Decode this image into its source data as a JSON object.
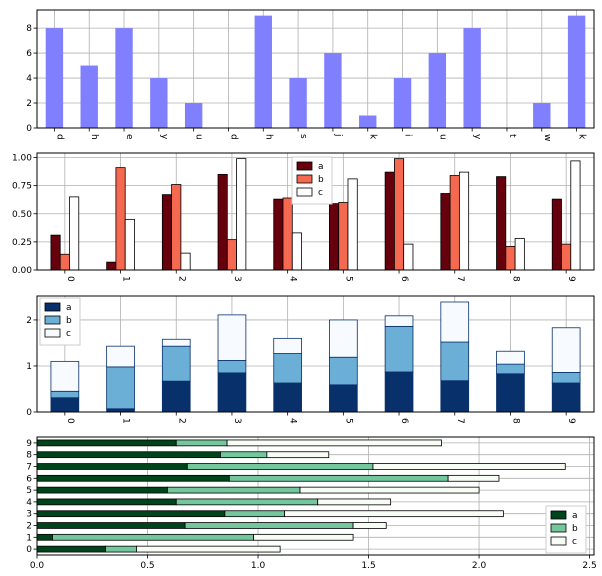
{
  "chart_data": [
    {
      "type": "bar",
      "orientation": "vertical",
      "categories": [
        "d",
        "h",
        "e",
        "y",
        "u",
        "d",
        "h",
        "s",
        "j",
        "k",
        "i",
        "u",
        "y",
        "t",
        "w",
        "k"
      ],
      "series": [
        {
          "values": [
            8,
            5,
            8,
            4,
            2,
            0,
            9,
            4,
            6,
            1,
            4,
            6,
            8,
            0,
            2,
            9
          ],
          "color": "#8080ff"
        }
      ],
      "ylim": [
        0,
        9.45
      ],
      "yticks": [
        0,
        2,
        4,
        6,
        8
      ],
      "ytick_labels": [
        "0",
        "2",
        "4",
        "6",
        "8"
      ],
      "grid": true
    },
    {
      "type": "bar",
      "orientation": "vertical",
      "grouped": true,
      "categories": [
        "0",
        "1",
        "2",
        "3",
        "4",
        "5",
        "6",
        "7",
        "8",
        "9"
      ],
      "series": [
        {
          "name": "a",
          "values": [
            0.31,
            0.07,
            0.67,
            0.85,
            0.63,
            0.59,
            0.87,
            0.68,
            0.83,
            0.63
          ],
          "color": "#67000d"
        },
        {
          "name": "b",
          "values": [
            0.14,
            0.91,
            0.76,
            0.27,
            0.64,
            0.6,
            0.99,
            0.84,
            0.21,
            0.23
          ],
          "color": "#f4694f"
        },
        {
          "name": "c",
          "values": [
            0.65,
            0.45,
            0.15,
            0.99,
            0.33,
            0.81,
            0.23,
            0.87,
            0.28,
            0.97
          ],
          "color": "#ffffff"
        }
      ],
      "ylim": [
        0,
        1.04
      ],
      "yticks": [
        0,
        0.25,
        0.5,
        0.75,
        1.0
      ],
      "ytick_labels": [
        "0.00",
        "0.25",
        "0.50",
        "0.75",
        "1.00"
      ],
      "legend": "top-center",
      "grid": true
    },
    {
      "type": "bar",
      "orientation": "vertical",
      "stacked": true,
      "categories": [
        "0",
        "1",
        "2",
        "3",
        "4",
        "5",
        "6",
        "7",
        "8",
        "9"
      ],
      "series": [
        {
          "name": "a",
          "values": [
            0.31,
            0.07,
            0.67,
            0.85,
            0.63,
            0.59,
            0.87,
            0.68,
            0.83,
            0.63
          ],
          "color": "#08306b"
        },
        {
          "name": "b",
          "values": [
            0.14,
            0.91,
            0.76,
            0.27,
            0.64,
            0.6,
            0.99,
            0.84,
            0.21,
            0.23
          ],
          "color": "#6baed6"
        },
        {
          "name": "c",
          "values": [
            0.65,
            0.45,
            0.15,
            0.99,
            0.33,
            0.81,
            0.23,
            0.87,
            0.28,
            0.97
          ],
          "color": "#f7fbff"
        }
      ],
      "ylim": [
        0,
        2.52
      ],
      "yticks": [
        0,
        1,
        2
      ],
      "ytick_labels": [
        "0",
        "1",
        "2"
      ],
      "legend": "top-left",
      "grid": true
    },
    {
      "type": "bar",
      "orientation": "horizontal",
      "stacked": true,
      "categories": [
        "0",
        "1",
        "2",
        "3",
        "4",
        "5",
        "6",
        "7",
        "8",
        "9"
      ],
      "series": [
        {
          "name": "a",
          "values": [
            0.31,
            0.07,
            0.67,
            0.85,
            0.63,
            0.59,
            0.87,
            0.68,
            0.83,
            0.63
          ],
          "color": "#00441b"
        },
        {
          "name": "b",
          "values": [
            0.14,
            0.91,
            0.76,
            0.27,
            0.64,
            0.6,
            0.99,
            0.84,
            0.21,
            0.23
          ],
          "color": "#74c69d"
        },
        {
          "name": "c",
          "values": [
            0.65,
            0.45,
            0.15,
            0.99,
            0.33,
            0.81,
            0.23,
            0.87,
            0.28,
            0.97
          ],
          "color": "#f7fcf5"
        }
      ],
      "xlim": [
        0,
        2.52
      ],
      "xticks": [
        0,
        0.5,
        1,
        1.5,
        2,
        2.5
      ],
      "xtick_labels": [
        "0.0",
        "0.5",
        "1.0",
        "1.5",
        "2.0",
        "2.5"
      ],
      "legend": "bottom-right",
      "grid": true
    }
  ]
}
